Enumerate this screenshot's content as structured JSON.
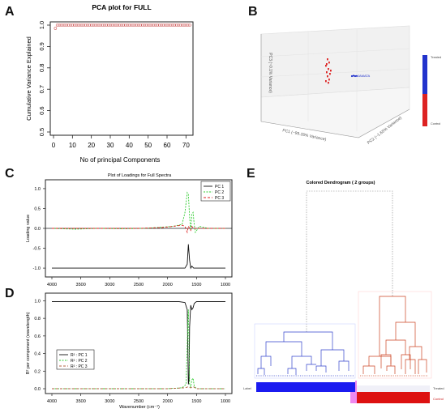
{
  "panel_letters": {
    "a": "A",
    "b": "B",
    "c": "C",
    "d": "D",
    "e": "E"
  },
  "chart_data": [
    {
      "id": "A",
      "type": "scatter",
      "title": "PCA plot for FULL",
      "xlabel": "No of principal Components",
      "ylabel": "Cumulative Variance Explained",
      "xlim": [
        0,
        72
      ],
      "ylim": [
        0.5,
        1.0
      ],
      "xticks": [
        "0",
        "10",
        "20",
        "30",
        "40",
        "50",
        "60",
        "70"
      ],
      "yticks": [
        "0.5",
        "0.6",
        "0.7",
        "0.8",
        "0.9",
        "1.0"
      ],
      "first_value": 0.985,
      "plateau_value": 1.0,
      "n_components": 72,
      "marker_color": "#d06060"
    },
    {
      "id": "B",
      "type": "scatter",
      "title": "",
      "xlabel": "PC1 (~99.26% Variance)",
      "ylabel": "PC2 (~1.65% Variance)",
      "zlabel": "PC3 (~0.1% Variance)",
      "point_label": "JAMATA",
      "legend_items": [
        "Treated",
        "Control"
      ],
      "colors": {
        "treated": "#2233cc",
        "control": "#dd2222"
      }
    },
    {
      "id": "C",
      "type": "line",
      "title": "Plot of Loadings for Full Spectra",
      "xlabel": "",
      "ylabel": "Loading value",
      "xlim": [
        4000,
        1000
      ],
      "ylim": [
        -1.1,
        1.1
      ],
      "xticks": [
        "4000",
        "3500",
        "3000",
        "2500",
        "2000",
        "1500",
        "1000"
      ],
      "yticks": [
        "1.0",
        "0.5",
        "0.0",
        "-0.5",
        "-1.0"
      ],
      "series": [
        {
          "name": "PC 1",
          "color": "#111111",
          "x": [
            4000,
            3000,
            2000,
            1800,
            1700,
            1660,
            1640,
            1620,
            1600,
            1580,
            1550,
            1500,
            1000
          ],
          "y": [
            -1.0,
            -1.0,
            -1.0,
            -1.0,
            -1.0,
            -0.9,
            -0.4,
            -0.8,
            -1.0,
            -0.95,
            -1.0,
            -1.0,
            -1.0
          ]
        },
        {
          "name": "PC 2",
          "color": "#33cc33",
          "x": [
            4000,
            3600,
            3200,
            2800,
            2400,
            2100,
            1900,
            1750,
            1700,
            1660,
            1640,
            1620,
            1600,
            1580,
            1560,
            1540,
            1520,
            1450,
            1300,
            1000
          ],
          "y": [
            0.0,
            -0.02,
            0.0,
            -0.01,
            0.0,
            0.03,
            0.05,
            0.1,
            0.4,
            0.9,
            0.85,
            0.3,
            -0.05,
            0.35,
            0.4,
            0.1,
            -0.1,
            0.05,
            0.0,
            0.0
          ]
        },
        {
          "name": "PC 3",
          "color": "#dd2222",
          "x": [
            4000,
            3500,
            3000,
            2500,
            2100,
            1900,
            1750,
            1700,
            1660,
            1640,
            1620,
            1600,
            1580,
            1550,
            1500,
            1000
          ],
          "y": [
            0.0,
            0.0,
            0.0,
            0.0,
            0.02,
            0.05,
            0.08,
            0.05,
            -0.1,
            0.05,
            0.0,
            -0.05,
            0.05,
            0.0,
            0.0,
            0.0
          ]
        }
      ]
    },
    {
      "id": "D",
      "type": "line",
      "title": "",
      "xlabel": "Wavenumber (cm⁻¹)",
      "ylabel": "R² per component (wavelength)",
      "xlim": [
        4000,
        1000
      ],
      "ylim": [
        0.0,
        1.05
      ],
      "xticks": [
        "4000",
        "3500",
        "3000",
        "2500",
        "2000",
        "1500",
        "1000"
      ],
      "yticks": [
        "0.0",
        "0.2",
        "0.4",
        "0.6",
        "0.8",
        "1.0"
      ],
      "series": [
        {
          "name": "R² : PC 1",
          "color": "#111111",
          "x": [
            4000,
            3000,
            2000,
            1800,
            1700,
            1660,
            1650,
            1640,
            1630,
            1620,
            1600,
            1580,
            1560,
            1540,
            1500,
            1000
          ],
          "y": [
            0.99,
            0.99,
            0.99,
            0.99,
            0.98,
            0.9,
            0.5,
            0.05,
            0.1,
            0.7,
            0.95,
            0.9,
            0.92,
            0.97,
            0.99,
            0.99
          ]
        },
        {
          "name": "R² : PC 2",
          "color": "#33cc33",
          "x": [
            4000,
            2000,
            1750,
            1680,
            1660,
            1650,
            1640,
            1630,
            1620,
            1600,
            1580,
            1560,
            1540,
            1500,
            1000
          ],
          "y": [
            0.0,
            0.0,
            0.01,
            0.05,
            0.5,
            0.75,
            0.9,
            0.45,
            0.05,
            0.02,
            0.1,
            0.12,
            0.03,
            0.0,
            0.0
          ]
        },
        {
          "name": "R² : PC 3",
          "color": "#b06040",
          "x": [
            4000,
            3000,
            2000,
            1700,
            1650,
            1600,
            1550,
            1500,
            1000
          ],
          "y": [
            0.0,
            0.0,
            0.0,
            0.01,
            0.02,
            0.01,
            0.02,
            0.0,
            0.0
          ]
        }
      ]
    },
    {
      "id": "E",
      "type": "diagram",
      "title": "Colored Dendrogram ( 2  groups)",
      "row_labels": [
        "Label",
        "Treated",
        "Control"
      ],
      "groups": [
        {
          "name": "Treated",
          "color": "#2233cc"
        },
        {
          "name": "Control",
          "color": "#dd2222"
        }
      ]
    }
  ]
}
